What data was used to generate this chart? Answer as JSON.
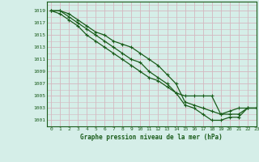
{
  "title": "Graphe pression niveau de la mer (hPa)",
  "bg_color": "#d5eee8",
  "grid_major_color": "#d4b8c0",
  "grid_minor_color": "#d4b8c0",
  "line_color": "#1a5c1a",
  "xlim": [
    -0.5,
    23
  ],
  "ylim": [
    1000,
    1020.5
  ],
  "xticks": [
    0,
    1,
    2,
    3,
    4,
    5,
    6,
    7,
    8,
    9,
    10,
    11,
    12,
    13,
    14,
    15,
    16,
    17,
    18,
    19,
    20,
    21,
    22,
    23
  ],
  "yticks": [
    1001,
    1003,
    1005,
    1007,
    1009,
    1011,
    1013,
    1015,
    1017,
    1019
  ],
  "series": [
    [
      1019,
      1019,
      1018.5,
      1017.5,
      1016.5,
      1015.5,
      1015,
      1014,
      1013.5,
      1013,
      1012,
      1011,
      1010,
      1008.5,
      1007,
      1004,
      1003.5,
      1003,
      1002.5,
      1002,
      1002.5,
      1003,
      1003,
      1003
    ],
    [
      1019,
      1018.5,
      1017.5,
      1016.5,
      1015,
      1014,
      1013,
      1012,
      1011,
      1010,
      1009,
      1008,
      1007.5,
      1006.5,
      1005.5,
      1005,
      1005,
      1005,
      1005,
      1002,
      1002,
      1002,
      1003,
      1003
    ],
    [
      1019,
      1019,
      1018,
      1017,
      1016,
      1015,
      1014,
      1013,
      1012,
      1011,
      1010.5,
      1009,
      1008,
      1007,
      1005.5,
      1003.5,
      1003,
      1002,
      1001,
      1001,
      1001.5,
      1001.5,
      1003,
      1003
    ]
  ]
}
